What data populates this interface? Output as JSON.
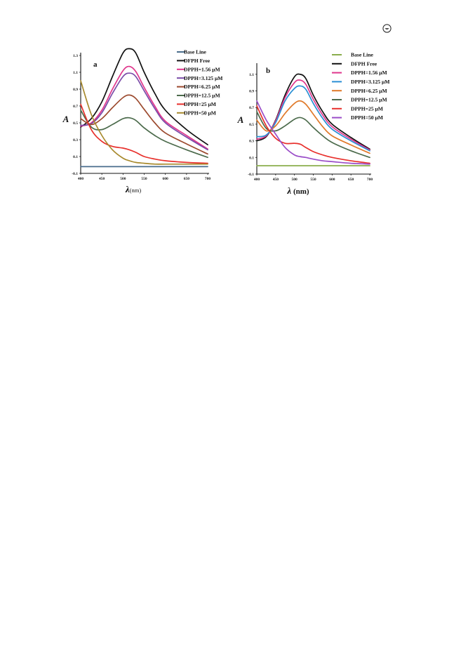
{
  "corner_icon": "circled-logo-icon",
  "chart_data": [
    {
      "type": "line",
      "panel_label": "a",
      "ylabel": "A",
      "xlabel_symbol": "λ",
      "xlabel_unit": "(nm)",
      "xlim": [
        400,
        700
      ],
      "ylim": [
        -0.1,
        1.3
      ],
      "x_ticks": [
        400,
        450,
        500,
        550,
        600,
        650,
        700
      ],
      "y_ticks": [
        {
          "value": -0.1,
          "label": "-0.1"
        },
        {
          "value": 0.1,
          "label": "0.1"
        },
        {
          "value": 0.3,
          "label": "0.3"
        },
        {
          "value": 0.5,
          "label": "0.5"
        },
        {
          "value": 0.7,
          "label": "0.7"
        },
        {
          "value": 0.9,
          "label": "0.9"
        },
        {
          "value": 1.1,
          "label": "1.1"
        },
        {
          "value": 1.3,
          "label": "1.3"
        }
      ],
      "legend_position": "top-right",
      "x": [
        400,
        425,
        450,
        475,
        500,
        515,
        530,
        550,
        575,
        600,
        650,
        700
      ],
      "series": [
        {
          "name": "Base Line",
          "color": "#4a6d8c",
          "values": [
            -0.02,
            -0.02,
            -0.02,
            -0.02,
            -0.02,
            -0.02,
            -0.02,
            -0.02,
            -0.02,
            -0.02,
            -0.02,
            -0.02
          ]
        },
        {
          "name": "DFPH  Free",
          "color": "#111111",
          "values": [
            0.45,
            0.55,
            0.75,
            1.05,
            1.33,
            1.38,
            1.33,
            1.1,
            0.85,
            0.65,
            0.42,
            0.24
          ]
        },
        {
          "name": "DPPH=1.56 μM",
          "color": "#e0368c",
          "values": [
            0.46,
            0.5,
            0.65,
            0.9,
            1.12,
            1.17,
            1.11,
            0.92,
            0.7,
            0.52,
            0.35,
            0.19
          ]
        },
        {
          "name": "DPPH=3.125 μM",
          "color": "#7a4ba8",
          "values": [
            0.47,
            0.49,
            0.62,
            0.85,
            1.05,
            1.09,
            1.05,
            0.88,
            0.67,
            0.5,
            0.33,
            0.18
          ]
        },
        {
          "name": "DPPH=6.25  μM",
          "color": "#9c4a2e",
          "values": [
            0.55,
            0.48,
            0.55,
            0.68,
            0.8,
            0.83,
            0.79,
            0.66,
            0.5,
            0.38,
            0.25,
            0.13
          ]
        },
        {
          "name": "DPPH=12.5  μM",
          "color": "#4c6b4c",
          "values": [
            0.65,
            0.45,
            0.42,
            0.48,
            0.55,
            0.56,
            0.53,
            0.44,
            0.35,
            0.28,
            0.18,
            0.09
          ]
        },
        {
          "name": "DPPH=25 μM",
          "color": "#e8302c",
          "values": [
            0.72,
            0.42,
            0.28,
            0.22,
            0.2,
            0.18,
            0.15,
            0.1,
            0.07,
            0.05,
            0.03,
            0.02
          ]
        },
        {
          "name": "DPPH=50 μM",
          "color": "#a88a2e",
          "values": [
            1.0,
            0.6,
            0.35,
            0.18,
            0.08,
            0.05,
            0.03,
            0.02,
            0.01,
            0.01,
            0.01,
            0.01
          ]
        }
      ]
    },
    {
      "type": "line",
      "panel_label": "b",
      "ylabel": "A",
      "xlabel_symbol": "λ",
      "xlabel_unit": "(nm)",
      "xlim": [
        400,
        700
      ],
      "ylim": [
        -0.1,
        1.2
      ],
      "x_ticks": [
        400,
        450,
        500,
        550,
        600,
        650,
        700
      ],
      "y_ticks": [
        {
          "value": -0.1,
          "label": "-0.1"
        },
        {
          "value": 0.1,
          "label": "0.1"
        },
        {
          "value": 0.3,
          "label": "0.3"
        },
        {
          "value": 0.5,
          "label": "0.5"
        },
        {
          "value": 0.7,
          "label": "0.7"
        },
        {
          "value": 0.9,
          "label": "0.9"
        },
        {
          "value": 1.1,
          "label": "1.1"
        }
      ],
      "legend_position": "top-right",
      "x": [
        400,
        425,
        450,
        475,
        500,
        515,
        530,
        550,
        575,
        600,
        650,
        700
      ],
      "series": [
        {
          "name": "Base Line",
          "color": "#8aad4c",
          "values": [
            0.0,
            0.0,
            0.0,
            0.0,
            0.0,
            0.0,
            0.0,
            0.0,
            0.0,
            0.0,
            0.0,
            0.0
          ]
        },
        {
          "name": "DFPH  Free",
          "color": "#111111",
          "values": [
            0.3,
            0.35,
            0.55,
            0.85,
            1.07,
            1.1,
            1.05,
            0.85,
            0.65,
            0.5,
            0.34,
            0.2
          ]
        },
        {
          "name": "DPPH=1.56 μM",
          "color": "#e0368c",
          "values": [
            0.32,
            0.36,
            0.54,
            0.82,
            1.0,
            1.03,
            0.98,
            0.8,
            0.61,
            0.47,
            0.32,
            0.19
          ]
        },
        {
          "name": "DPPH=3.125 μM",
          "color": "#2a8fd4",
          "values": [
            0.35,
            0.37,
            0.52,
            0.78,
            0.93,
            0.96,
            0.92,
            0.75,
            0.57,
            0.44,
            0.3,
            0.18
          ]
        },
        {
          "name": "DPPH=6.25  μM",
          "color": "#e07a2a",
          "values": [
            0.55,
            0.42,
            0.48,
            0.63,
            0.75,
            0.78,
            0.74,
            0.62,
            0.47,
            0.36,
            0.25,
            0.15
          ]
        },
        {
          "name": "DPPH=12.5  μM",
          "color": "#4c6b4c",
          "values": [
            0.65,
            0.45,
            0.42,
            0.48,
            0.56,
            0.58,
            0.55,
            0.46,
            0.36,
            0.28,
            0.18,
            0.1
          ]
        },
        {
          "name": "DPPH=25 μM",
          "color": "#e8302c",
          "values": [
            0.72,
            0.48,
            0.33,
            0.27,
            0.27,
            0.26,
            0.22,
            0.17,
            0.13,
            0.1,
            0.06,
            0.03
          ]
        },
        {
          "name": "DPPH=50 μM",
          "color": "#9a4dc8",
          "values": [
            0.78,
            0.55,
            0.38,
            0.22,
            0.13,
            0.11,
            0.1,
            0.08,
            0.06,
            0.05,
            0.03,
            0.02
          ]
        }
      ]
    }
  ]
}
